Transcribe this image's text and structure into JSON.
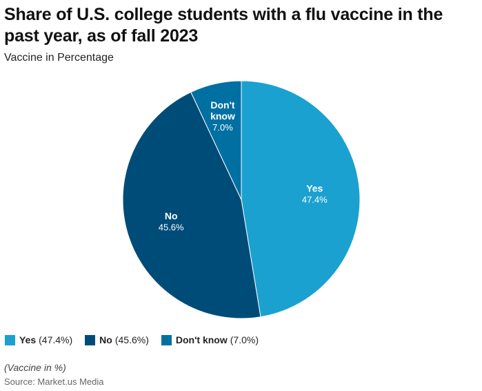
{
  "header": {
    "title": "Share of U.S. college students with a flu vaccine in the past year, as of fall 2023",
    "subtitle": "Vaccine in Percentage"
  },
  "chart_data": {
    "type": "pie",
    "title": "Share of U.S. college students with a flu vaccine in the past year, as of fall 2023",
    "subtitle": "Vaccine in Percentage",
    "unit": "%",
    "slices": [
      {
        "label": "Yes",
        "label_lines": [
          "Yes"
        ],
        "value": 47.4,
        "value_text": "47.4%",
        "legend_value": "(47.4%)",
        "color": "#1aa1d0"
      },
      {
        "label": "No",
        "label_lines": [
          "No"
        ],
        "value": 45.6,
        "value_text": "45.6%",
        "legend_value": "(45.6%)",
        "color": "#004c78"
      },
      {
        "label": "Don't know",
        "label_lines": [
          "Don't",
          "know"
        ],
        "value": 7.0,
        "value_text": "7.0%",
        "legend_value": "(7.0%)",
        "color": "#0070a2"
      }
    ],
    "legend_placement": "bottom-left"
  },
  "footer": {
    "note": "(Vaccine in %)",
    "source": "Source: Market.us Media"
  }
}
